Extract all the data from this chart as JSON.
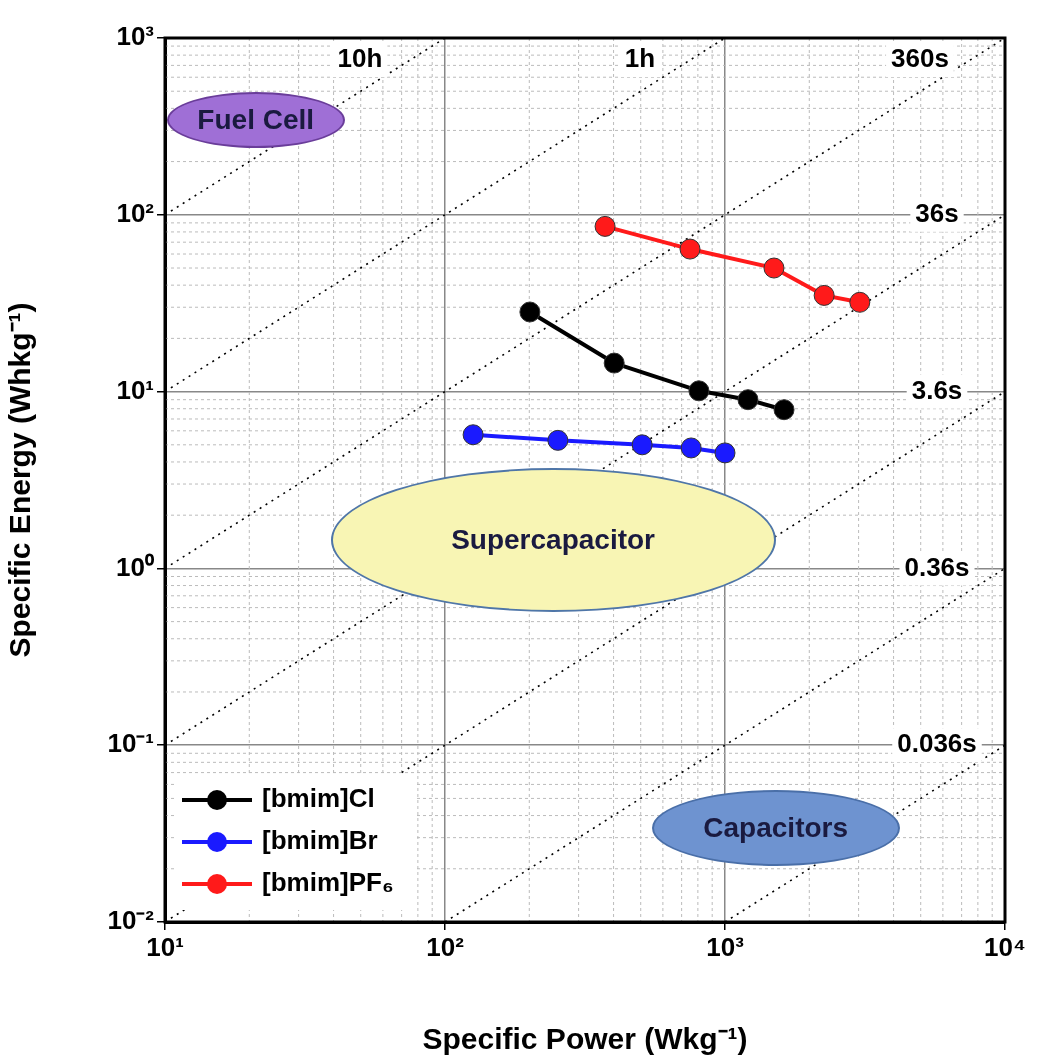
{
  "chart_data": {
    "type": "line",
    "xlabel": "Specific Power (Wkg⁻¹)",
    "ylabel": "Specific Energy (Whkg⁻¹)",
    "log": "xy",
    "grid": true,
    "legend": "bottom left",
    "marker": "circle",
    "xlim": [
      10,
      10000
    ],
    "xticks": [
      {
        "value": 10,
        "label": "10¹"
      },
      {
        "value": 100,
        "label": "10²"
      },
      {
        "value": 1000,
        "label": "10³"
      },
      {
        "value": 10000,
        "label": "10⁴"
      }
    ],
    "ylim": [
      0.01,
      1000
    ],
    "yticks": [
      {
        "value": 0.01,
        "label": "10⁻²"
      },
      {
        "value": 0.1,
        "label": "10⁻¹"
      },
      {
        "value": 1,
        "label": "10⁰"
      },
      {
        "value": 10,
        "label": "10¹"
      },
      {
        "value": 100,
        "label": "10²"
      },
      {
        "value": 1000,
        "label": "10³"
      }
    ],
    "series": [
      {
        "name": "[bmim]Cl",
        "color": "#000000",
        "x": [
          201,
          402,
          807,
          1208,
          1625
        ],
        "values": [
          28.2,
          14.5,
          10.1,
          9.0,
          7.9
        ]
      },
      {
        "name": "[bmim]Br",
        "color": "#1a1aff",
        "x": [
          126,
          253,
          506,
          757,
          1000
        ],
        "values": [
          5.7,
          5.3,
          5.0,
          4.8,
          4.5
        ]
      },
      {
        "name": "[bmim]PF₆",
        "color": "#ff1a1a",
        "x": [
          373,
          750,
          1496,
          2260,
          3030
        ],
        "values": [
          86,
          64,
          50,
          35,
          32
        ]
      },
      {
        "color": "#000000",
        "line_style": "dotted",
        "marker": "none",
        "x": [
          10,
          100
        ],
        "values": [
          100,
          1000
        ]
      },
      {
        "color": "#000000",
        "line_style": "dotted",
        "marker": "none",
        "x": [
          10,
          1000
        ],
        "values": [
          10,
          1000
        ]
      },
      {
        "color": "#000000",
        "line_style": "dotted",
        "marker": "none",
        "x": [
          10,
          10000
        ],
        "values": [
          1,
          1000
        ]
      },
      {
        "color": "#000000",
        "line_style": "dotted",
        "marker": "none",
        "x": [
          10,
          10000
        ],
        "values": [
          0.1,
          100
        ]
      },
      {
        "color": "#000000",
        "line_style": "dotted",
        "marker": "none",
        "x": [
          10,
          10000
        ],
        "values": [
          0.01,
          10
        ]
      },
      {
        "color": "#000000",
        "line_style": "dotted",
        "marker": "none",
        "x": [
          100,
          10000
        ],
        "values": [
          0.01,
          1
        ]
      },
      {
        "color": "#000000",
        "line_style": "dotted",
        "marker": "none",
        "x": [
          1000,
          10000
        ],
        "values": [
          0.01,
          0.1
        ]
      }
    ],
    "annotations": [
      "10h",
      "1h",
      "360s",
      "36s",
      "3.6s",
      "0.36s",
      "0.036s",
      "Fuel Cell",
      "Supercapacitor",
      "Capacitors"
    ]
  }
}
